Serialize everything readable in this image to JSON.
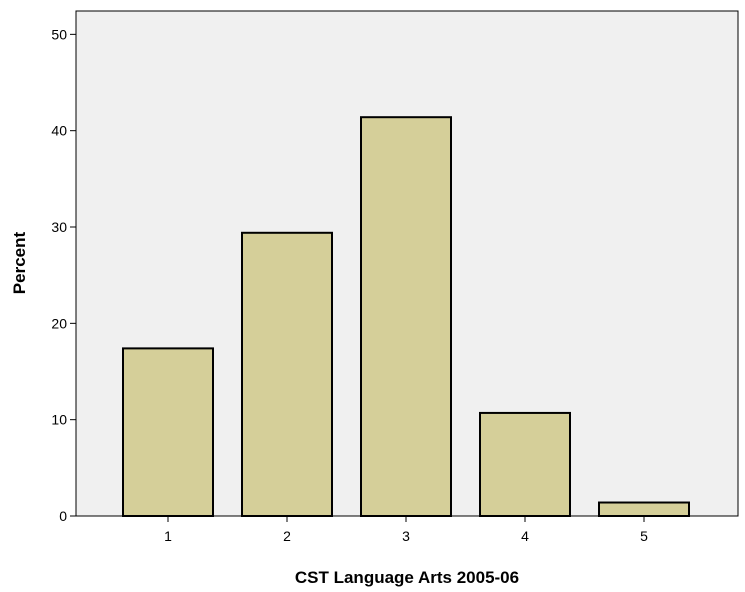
{
  "chart_data": {
    "type": "bar",
    "title": "",
    "xlabel": "CST Language Arts 2005-06",
    "ylabel": "Percent",
    "categories": [
      "1",
      "2",
      "3",
      "4",
      "5"
    ],
    "values": [
      17.4,
      29.4,
      41.4,
      10.7,
      1.4
    ],
    "ylim": [
      0,
      53
    ],
    "yticks": [
      0,
      10,
      20,
      30,
      40,
      50
    ],
    "ytick_labels": [
      "0",
      "10",
      "20",
      "30",
      "40",
      "50"
    ],
    "grid": false,
    "legend": "none",
    "colors": {
      "bar_fill": "#d5cf99",
      "bar_stroke": "#000000",
      "plot_background": "#f0f0f0",
      "axis": "#000000"
    }
  }
}
